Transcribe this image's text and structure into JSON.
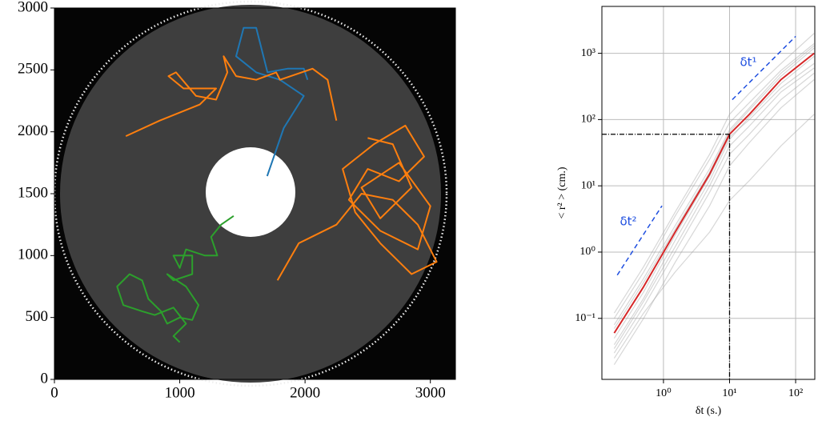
{
  "chart_data": [
    {
      "type": "line",
      "xlim": [
        0,
        3200
      ],
      "ylim": [
        0,
        3000
      ],
      "xticks": [
        0,
        1000,
        2000,
        3000
      ],
      "yticks": [
        0,
        500,
        1000,
        1500,
        2000,
        2500,
        3000
      ],
      "series": [
        {
          "color": "#1f77b4",
          "x": [
            1698,
            1830,
            1990,
            1800,
            1610,
            1450,
            1510,
            1610,
            1700,
            1860,
            1990,
            2020
          ],
          "values": [
            1642,
            2030,
            2290,
            2420,
            2480,
            2610,
            2840,
            2840,
            2480,
            2510,
            2510,
            2420
          ]
        },
        {
          "color": "#ff7f0e",
          "x": [
            570,
            840,
            1160,
            1290,
            1030,
            910,
            970,
            1130,
            1290,
            1380,
            1350,
            1450,
            1610,
            1770,
            1800,
            2060,
            2180,
            2250
          ],
          "values": [
            1965,
            2090,
            2220,
            2350,
            2350,
            2450,
            2480,
            2290,
            2260,
            2480,
            2610,
            2450,
            2420,
            2480,
            2420,
            2510,
            2420,
            2090
          ]
        },
        {
          "color": "#ff7f0e",
          "x": [
            1780,
            1950,
            2250,
            2450,
            2700,
            2900,
            3050,
            2850,
            2600,
            2400,
            2300,
            2550,
            2800,
            2950,
            2750,
            2500,
            2350,
            2600,
            2900,
            3000,
            2750,
            2450,
            2600,
            2850,
            2700,
            2500
          ],
          "values": [
            800,
            1100,
            1250,
            1500,
            1450,
            1250,
            950,
            850,
            1100,
            1350,
            1700,
            1900,
            2050,
            1800,
            1600,
            1700,
            1450,
            1200,
            1050,
            1400,
            1750,
            1550,
            1300,
            1550,
            1900,
            1950
          ]
        },
        {
          "color": "#2ca02c",
          "x": [
            1430,
            1330,
            1250,
            1300,
            1200,
            1050,
            1000,
            950,
            1100,
            1100,
            950,
            900,
            1050,
            1150,
            1100,
            1000,
            900,
            850,
            750,
            700,
            600,
            500,
            550,
            700,
            800,
            950,
            1050,
            950,
            1000
          ],
          "values": [
            1320,
            1250,
            1150,
            1000,
            1000,
            1050,
            900,
            1000,
            1000,
            850,
            800,
            850,
            750,
            600,
            480,
            500,
            450,
            550,
            650,
            800,
            850,
            750,
            600,
            550,
            520,
            580,
            450,
            350,
            300
          ]
        }
      ]
    },
    {
      "type": "line",
      "log": true,
      "grid": true,
      "xlabel": "δt (s.)",
      "ylabel": "< r² > (cm.)",
      "xlim": [
        0.117,
        195
      ],
      "ylim": [
        0.012,
        5100
      ],
      "xticks": [
        {
          "value": 1,
          "label": "10⁰"
        },
        {
          "value": 10,
          "label": "10¹"
        },
        {
          "value": 100,
          "label": "10²"
        }
      ],
      "yticks": [
        {
          "value": 0.1,
          "label": "10⁻¹"
        },
        {
          "value": 1,
          "label": "10⁰"
        },
        {
          "value": 10,
          "label": "10¹"
        },
        {
          "value": 100,
          "label": "10²"
        },
        {
          "value": 1000,
          "label": "10³"
        }
      ],
      "hline": 60,
      "vline": 10,
      "annotations": [
        "δt²",
        "δt¹"
      ],
      "guides": [
        {
          "color": "#1f4fe0",
          "x": [
            0.2,
            0.95
          ],
          "values": [
            0.45,
            5
          ]
        },
        {
          "color": "#1f4fe0",
          "x": [
            11,
            100
          ],
          "values": [
            200,
            1800
          ]
        }
      ],
      "series": [
        {
          "color": "#9a9a9a",
          "x": [
            0.18,
            0.5,
            1.5,
            5,
            10,
            20,
            60,
            190
          ],
          "values": [
            0.03,
            0.15,
            1,
            8,
            30,
            60,
            200,
            500
          ]
        },
        {
          "color": "#9a9a9a",
          "x": [
            0.18,
            0.5,
            1.5,
            5,
            10,
            20,
            60,
            190
          ],
          "values": [
            0.1,
            0.5,
            3.5,
            25,
            90,
            180,
            550,
            1400
          ]
        },
        {
          "color": "#9a9a9a",
          "x": [
            0.18,
            0.5,
            1.5,
            5,
            10,
            20,
            60,
            190
          ],
          "values": [
            0.04,
            0.2,
            1.5,
            12,
            50,
            110,
            350,
            900
          ]
        },
        {
          "color": "#9a9a9a",
          "x": [
            0.18,
            0.5,
            1.5,
            5,
            10,
            20,
            60,
            190
          ],
          "values": [
            0.02,
            0.1,
            0.7,
            5,
            20,
            45,
            150,
            400
          ]
        },
        {
          "color": "#9a9a9a",
          "x": [
            0.18,
            0.5,
            1.5,
            5,
            10,
            20,
            60,
            190
          ],
          "values": [
            0.08,
            0.4,
            2.5,
            18,
            70,
            150,
            500,
            1300
          ]
        },
        {
          "color": "#9a9a9a",
          "x": [
            0.18,
            0.5,
            1.5,
            5,
            10,
            20,
            60,
            190
          ],
          "values": [
            0.05,
            0.25,
            1.8,
            14,
            55,
            100,
            300,
            700
          ]
        },
        {
          "color": "#9a9a9a",
          "x": [
            0.18,
            0.5,
            1.5,
            5,
            10,
            20,
            60,
            190
          ],
          "values": [
            0.12,
            0.6,
            4,
            30,
            120,
            250,
            700,
            2000
          ]
        },
        {
          "color": "#9a9a9a",
          "x": [
            0.18,
            0.5,
            1.5,
            5,
            10,
            20,
            60,
            190
          ],
          "values": [
            0.025,
            0.12,
            0.5,
            2,
            6,
            12,
            40,
            120
          ]
        },
        {
          "color": "#9a9a9a",
          "x": [
            0.18,
            0.5,
            1.5,
            5,
            10,
            20,
            60,
            190
          ],
          "values": [
            0.035,
            0.18,
            1.2,
            10,
            40,
            80,
            260,
            600
          ]
        },
        {
          "color": "#9a9a9a",
          "x": [
            0.18,
            0.5,
            1.5,
            5,
            10,
            20,
            60,
            190
          ],
          "values": [
            0.07,
            0.35,
            2.2,
            16,
            65,
            140,
            450,
            1200
          ]
        },
        {
          "color": "#d62728",
          "x": [
            0.18,
            0.5,
            1.5,
            5,
            10,
            20,
            60,
            190
          ],
          "values": [
            0.06,
            0.3,
            2,
            15,
            60,
            120,
            400,
            1000
          ]
        }
      ]
    }
  ]
}
